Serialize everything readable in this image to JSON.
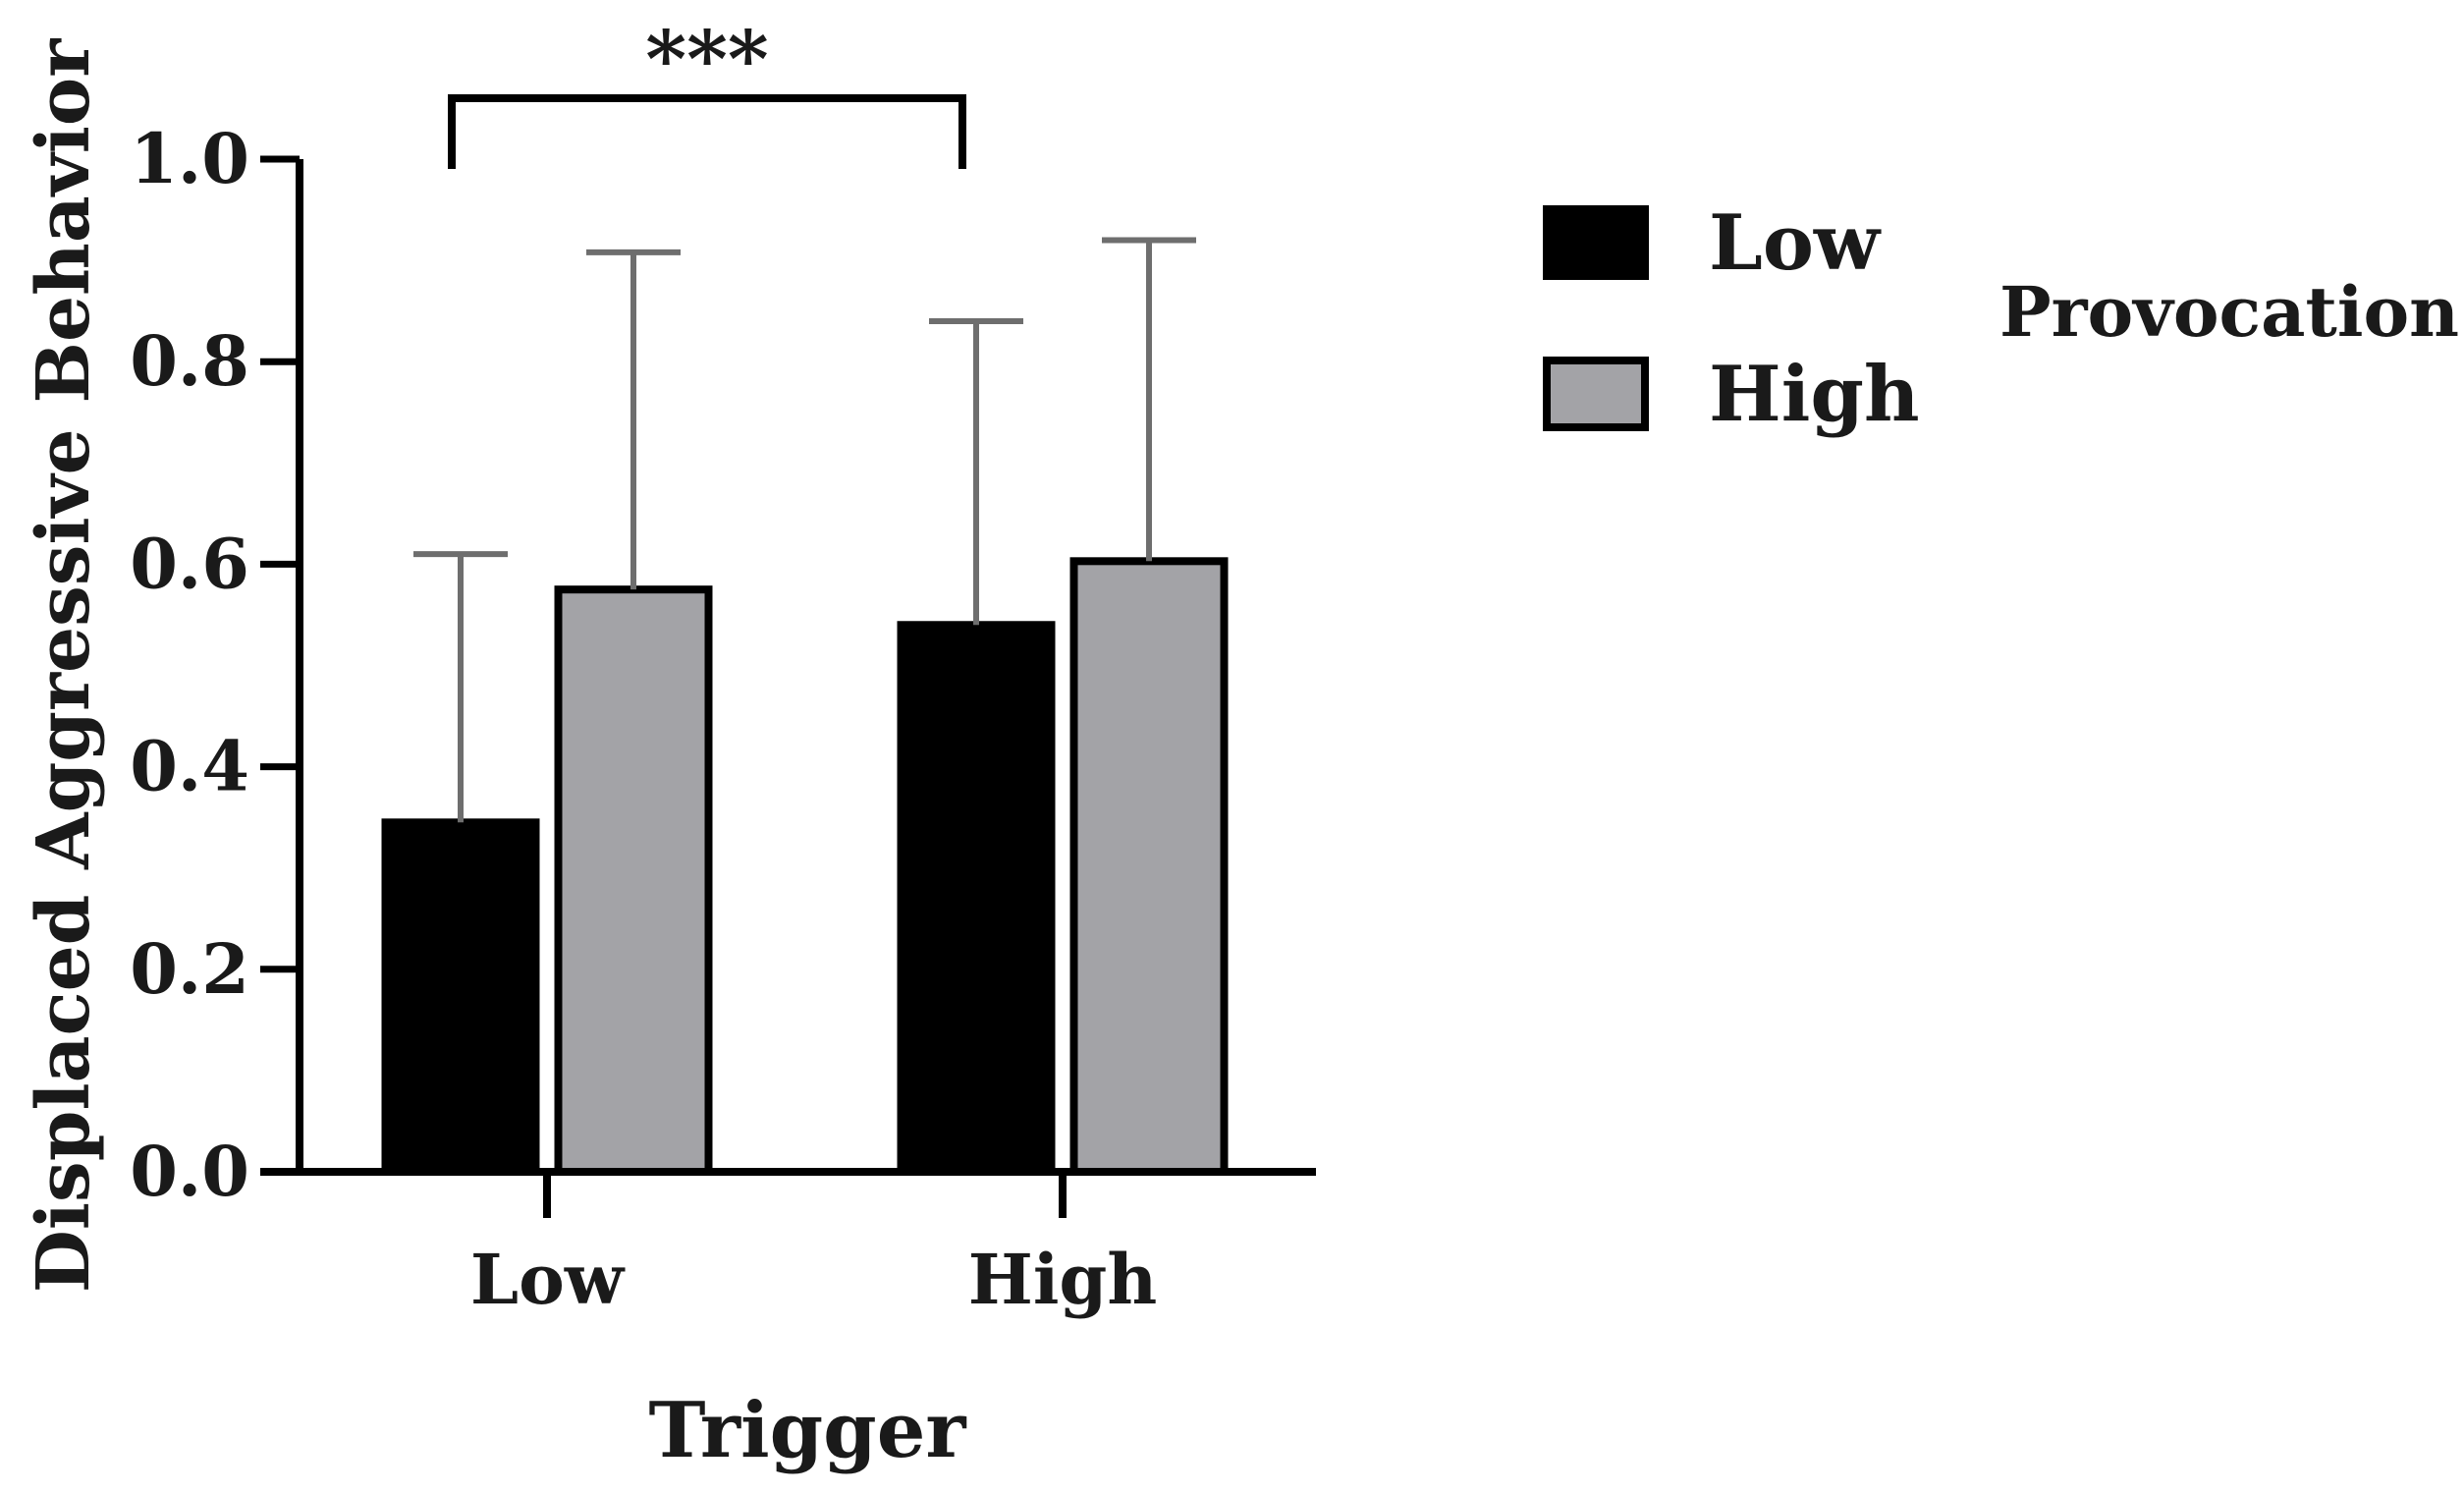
{
  "chart_data": {
    "type": "bar",
    "title": "",
    "xlabel": "Trigger",
    "ylabel": "Displaced Aggressive Behavior",
    "categories": [
      "Low",
      "High"
    ],
    "ylim": [
      0,
      1.0
    ],
    "yticks": [
      0.0,
      0.2,
      0.4,
      0.6,
      0.8,
      1.0
    ],
    "ytick_labels": [
      "0.0",
      "0.2",
      "0.4",
      "0.6",
      "0.8",
      "1.0"
    ],
    "legend_title": "Provocation",
    "legend_position": "top-right",
    "series": [
      {
        "name": "Low",
        "color": "#000000",
        "values": [
          0.345,
          0.54
        ],
        "error_upper": [
          0.265,
          0.3
        ]
      },
      {
        "name": "High",
        "color": "#a3a3a7",
        "values": [
          0.575,
          0.603
        ],
        "error_upper": [
          0.333,
          0.317
        ]
      }
    ],
    "significance": {
      "label": "***",
      "between": [
        "Low",
        "High"
      ]
    }
  }
}
